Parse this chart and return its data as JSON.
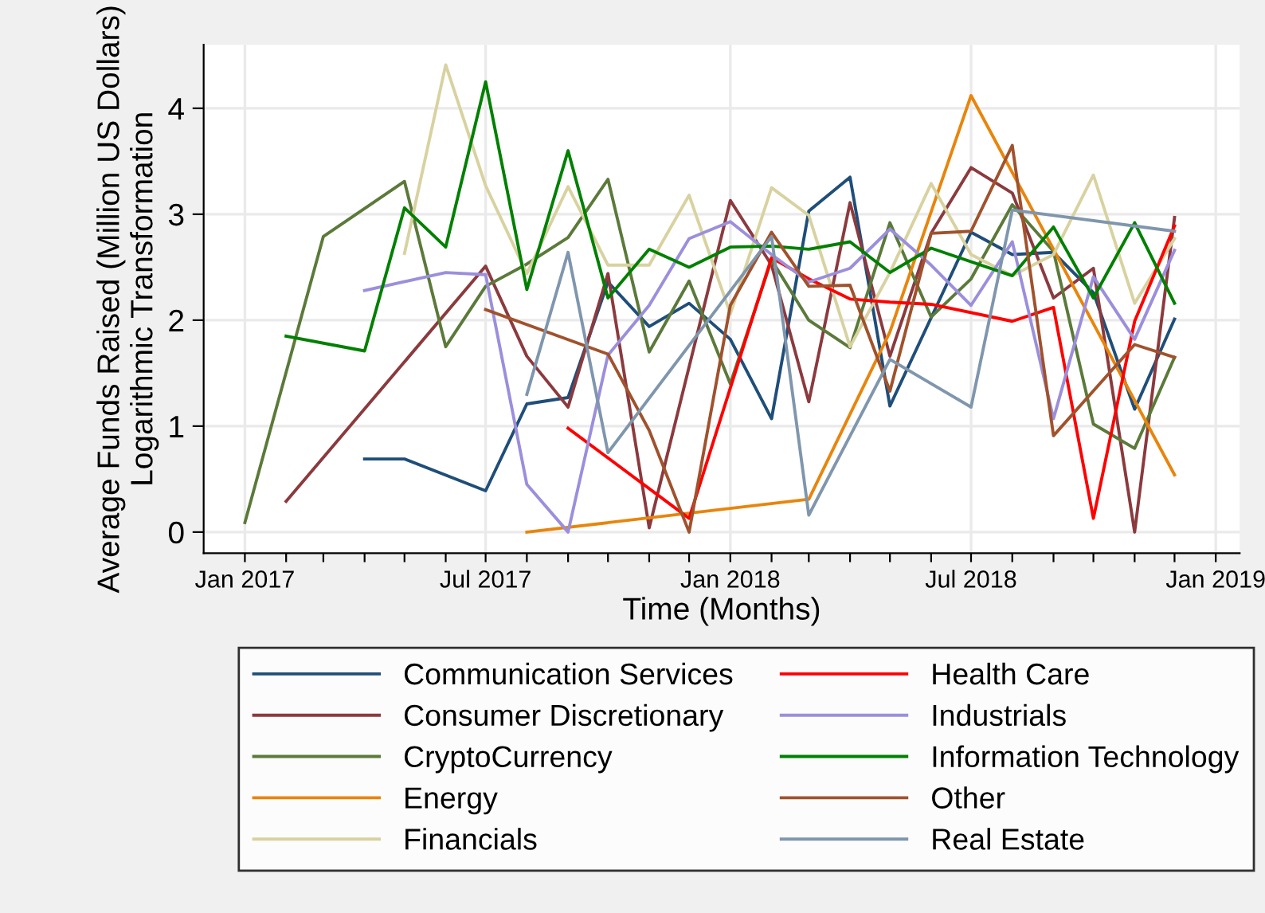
{
  "chart_data": {
    "type": "line",
    "xlabel": "Time (Months)",
    "ylabel": "Average Funds Raised (Million US Dollars)\nLogarithmic Transformation",
    "xlim": [
      "2016-12-01",
      "2019-01-19"
    ],
    "xticks": [
      {
        "value": "2017-01",
        "label": "Jan 2017"
      },
      {
        "value": "2017-02",
        "label": null
      },
      {
        "value": "2017-03",
        "label": null
      },
      {
        "value": "2017-04",
        "label": null
      },
      {
        "value": "2017-05",
        "label": null
      },
      {
        "value": "2017-06",
        "label": null
      },
      {
        "value": "2017-07",
        "label": "Jul 2017"
      },
      {
        "value": "2017-08",
        "label": null
      },
      {
        "value": "2017-09",
        "label": null
      },
      {
        "value": "2017-10",
        "label": null
      },
      {
        "value": "2017-11",
        "label": null
      },
      {
        "value": "2017-12",
        "label": null
      },
      {
        "value": "2018-01",
        "label": "Jan 2018"
      },
      {
        "value": "2018-02",
        "label": null
      },
      {
        "value": "2018-03",
        "label": null
      },
      {
        "value": "2018-04",
        "label": null
      },
      {
        "value": "2018-05",
        "label": null
      },
      {
        "value": "2018-06",
        "label": null
      },
      {
        "value": "2018-07",
        "label": "Jul 2018"
      },
      {
        "value": "2018-08",
        "label": null
      },
      {
        "value": "2018-09",
        "label": null
      },
      {
        "value": "2018-10",
        "label": null
      },
      {
        "value": "2018-11",
        "label": null
      },
      {
        "value": "2018-12",
        "label": null
      },
      {
        "value": "2019-01",
        "label": "Jan 2019"
      }
    ],
    "ylim": [
      -0.2,
      4.6
    ],
    "yticks": [
      0,
      1,
      2,
      3,
      4
    ],
    "grid": true,
    "legend": "bottom",
    "series": [
      {
        "name": "Communication Services",
        "color": "#1f4e79",
        "x": [
          "2017-04",
          "2017-05",
          "2017-07",
          "2017-08",
          "2017-09",
          "2017-10",
          "2017-11",
          "2017-12",
          "2018-01",
          "2018-02",
          "2018-03",
          "2018-04",
          "2018-05",
          "2018-07",
          "2018-08",
          "2018-09",
          "2018-10",
          "2018-11",
          "2018-12"
        ],
        "values": [
          0.69,
          0.69,
          0.39,
          1.21,
          1.27,
          2.36,
          1.94,
          2.16,
          1.82,
          1.07,
          3.03,
          3.35,
          1.19,
          2.83,
          2.62,
          2.64,
          2.26,
          1.16,
          2.01
        ]
      },
      {
        "name": "Consumer Discretionary",
        "color": "#8b3a3e",
        "x": [
          "2017-02",
          "2017-07",
          "2017-08",
          "2017-09",
          "2017-10",
          "2017-11",
          "2018-01",
          "2018-02",
          "2018-03",
          "2018-04",
          "2018-05",
          "2018-06",
          "2018-07",
          "2018-08",
          "2018-09",
          "2018-10",
          "2018-11",
          "2018-12"
        ],
        "values": [
          0.29,
          2.51,
          1.66,
          1.18,
          2.44,
          0.04,
          3.13,
          2.52,
          1.23,
          3.11,
          1.66,
          2.82,
          3.44,
          3.2,
          2.21,
          2.49,
          0,
          2.97
        ]
      },
      {
        "name": "CryptoCurrency",
        "color": "#5b7a3a",
        "x": [
          "2017-01",
          "2017-03",
          "2017-05",
          "2017-06",
          "2017-07",
          "2017-08",
          "2017-09",
          "2017-10",
          "2017-11",
          "2017-12",
          "2018-01",
          "2018-02",
          "2018-03",
          "2018-04",
          "2018-05",
          "2018-06",
          "2018-07",
          "2018-08",
          "2018-09",
          "2018-10",
          "2018-11",
          "2018-12"
        ],
        "values": [
          0.09,
          2.79,
          3.31,
          1.75,
          2.32,
          2.53,
          2.78,
          3.33,
          1.7,
          2.37,
          1.4,
          2.57,
          2.0,
          1.74,
          2.92,
          2.03,
          2.39,
          3.09,
          2.65,
          1.02,
          0.79,
          1.65
        ]
      },
      {
        "name": "Energy",
        "color": "#e8850c",
        "x": [
          "2017-08",
          "2018-03",
          "2018-05",
          "2018-07",
          "2018-12"
        ],
        "values": [
          0,
          0.31,
          1.89,
          4.12,
          0.54
        ]
      },
      {
        "name": "Financials",
        "color": "#d8d2a0",
        "x": [
          "2017-05",
          "2017-06",
          "2017-07",
          "2017-08",
          "2017-09",
          "2017-10",
          "2017-11",
          "2017-12",
          "2018-01",
          "2018-02",
          "2018-03",
          "2018-04",
          "2018-05",
          "2018-06",
          "2018-07",
          "2018-08",
          "2018-09",
          "2018-10",
          "2018-11",
          "2018-12"
        ],
        "values": [
          2.63,
          4.41,
          3.27,
          2.44,
          3.26,
          2.52,
          2.52,
          3.18,
          2.06,
          3.25,
          2.99,
          1.75,
          2.45,
          3.29,
          2.62,
          2.42,
          2.62,
          3.37,
          2.16,
          2.77
        ]
      },
      {
        "name": "Health Care",
        "color": "#ff0000",
        "x": [
          "2017-09",
          "2017-12",
          "2018-02",
          "2018-03",
          "2018-04",
          "2018-05",
          "2018-06",
          "2018-08",
          "2018-09",
          "2018-10",
          "2018-11",
          "2018-12"
        ],
        "values": [
          0.98,
          0.13,
          2.59,
          2.39,
          2.2,
          2.17,
          2.15,
          1.99,
          2.12,
          0.13,
          1.99,
          2.89
        ]
      },
      {
        "name": "Industrials",
        "color": "#9b8fdc",
        "x": [
          "2017-04",
          "2017-06",
          "2017-07",
          "2017-08",
          "2017-09",
          "2017-10",
          "2017-11",
          "2017-12",
          "2018-01",
          "2018-02",
          "2018-03",
          "2018-04",
          "2018-05",
          "2018-06",
          "2018-07",
          "2018-08",
          "2018-09",
          "2018-10",
          "2018-11",
          "2018-12"
        ],
        "values": [
          2.28,
          2.45,
          2.43,
          0.45,
          0.0,
          1.67,
          2.14,
          2.77,
          2.93,
          2.62,
          2.36,
          2.49,
          2.86,
          2.52,
          2.14,
          2.74,
          1.07,
          2.41,
          1.82,
          2.66
        ]
      },
      {
        "name": "Information Technology",
        "color": "#008000",
        "x": [
          "2017-02",
          "2017-04",
          "2017-05",
          "2017-06",
          "2017-07",
          "2017-08",
          "2017-09",
          "2017-10",
          "2017-11",
          "2017-12",
          "2018-01",
          "2018-02",
          "2018-03",
          "2018-04",
          "2018-05",
          "2018-06",
          "2018-08",
          "2018-09",
          "2018-10",
          "2018-11",
          "2018-12"
        ],
        "values": [
          1.85,
          1.71,
          3.06,
          2.69,
          4.25,
          2.29,
          3.6,
          2.21,
          2.67,
          2.5,
          2.69,
          2.7,
          2.67,
          2.74,
          2.45,
          2.68,
          2.42,
          2.88,
          2.21,
          2.92,
          2.16
        ]
      },
      {
        "name": "Other",
        "color": "#a0522d",
        "x": [
          "2017-07",
          "2017-10",
          "2017-11",
          "2017-12",
          "2018-01",
          "2018-02",
          "2018-03",
          "2018-04",
          "2018-05",
          "2018-06",
          "2018-07",
          "2018-08",
          "2018-09",
          "2018-11",
          "2018-12"
        ],
        "values": [
          2.1,
          1.68,
          0.96,
          0,
          2.14,
          2.83,
          2.32,
          2.33,
          1.33,
          2.82,
          2.84,
          3.65,
          0.91,
          1.77,
          1.65
        ]
      },
      {
        "name": "Real Estate",
        "color": "#7f96ad",
        "x": [
          "2017-08",
          "2017-09",
          "2017-10",
          "2018-02",
          "2018-03",
          "2018-05",
          "2018-07",
          "2018-08",
          "2018-12"
        ],
        "values": [
          1.3,
          2.64,
          0.75,
          2.79,
          0.16,
          1.63,
          1.18,
          3.04,
          2.84
        ]
      }
    ]
  }
}
